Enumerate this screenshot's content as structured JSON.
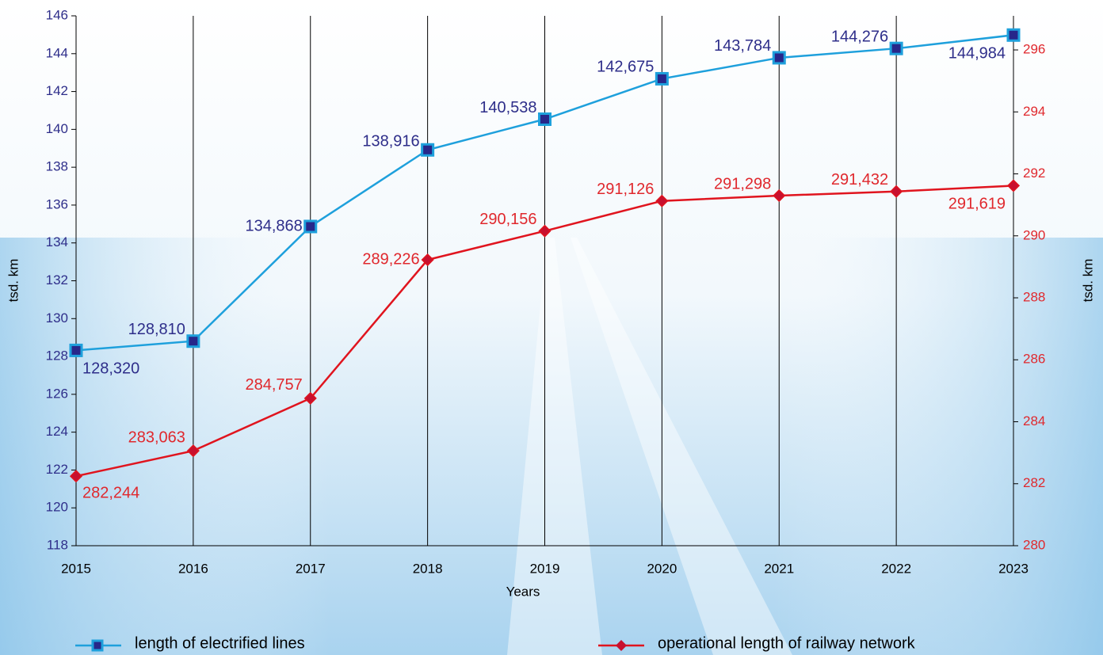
{
  "chart_data": {
    "type": "line",
    "x_label": "Years",
    "y_label": "tsd. km",
    "y2_label": "tsd. km",
    "categories": [
      "2015",
      "2016",
      "2017",
      "2018",
      "2019",
      "2020",
      "2021",
      "2022",
      "2023"
    ],
    "series": [
      {
        "name": "length of electrified lines",
        "color": "#1ea0dc",
        "marker_color": "#27278a",
        "label_color": "#2e2e8a",
        "values": [
          128.32,
          128.81,
          134.868,
          138.916,
          140.538,
          142.675,
          143.784,
          144.276,
          144.984
        ],
        "value_labels": [
          "128,320",
          "128,810",
          "134,868",
          "138,916",
          "140,538",
          "142,675",
          "143,784",
          "144,276",
          "144,984"
        ]
      },
      {
        "name": "operational length of railway network",
        "color": "#e0141e",
        "marker_color": "#c8102e",
        "label_color": "#e0282d",
        "axis": "y2",
        "values": [
          282.244,
          283.063,
          284.757,
          289.226,
          290.156,
          291.126,
          291.298,
          291.432,
          291.619
        ],
        "value_labels": [
          "282,244",
          "283,063",
          "284,757",
          "289,226",
          "290,156",
          "291,126",
          "291,298",
          "291,432",
          "291,619"
        ]
      }
    ],
    "ylim": [
      118,
      146
    ],
    "yticks": [
      118,
      120,
      122,
      124,
      126,
      128,
      130,
      132,
      134,
      136,
      138,
      140,
      142,
      144,
      146
    ],
    "y2lim": [
      280,
      297.1
    ],
    "y2ticks": [
      280,
      282,
      284,
      286,
      288,
      290,
      292,
      294,
      296
    ],
    "grid": true
  }
}
